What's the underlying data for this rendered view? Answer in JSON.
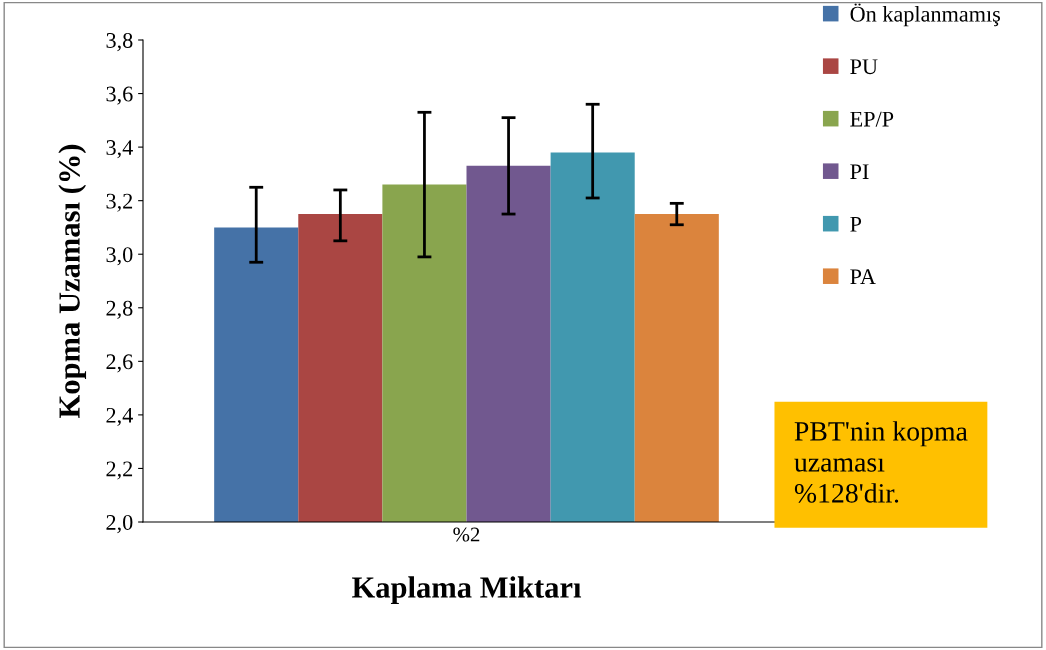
{
  "chart_data": {
    "type": "bar",
    "xlabel": "Kaplama Miktarı",
    "ylabel": "Kopma Uzaması (%)",
    "categories": [
      "%2"
    ],
    "series": [
      {
        "name": "Ön kaplanmamış",
        "color": "#4572a7",
        "values": [
          3.1
        ],
        "errors": [
          [
            2.97,
            3.25
          ]
        ]
      },
      {
        "name": "PU",
        "color": "#aa4643",
        "values": [
          3.15
        ],
        "errors": [
          [
            3.05,
            3.24
          ]
        ]
      },
      {
        "name": "EP/P",
        "color": "#89a54e",
        "values": [
          3.26
        ],
        "errors": [
          [
            2.99,
            3.53
          ]
        ]
      },
      {
        "name": "PI",
        "color": "#71588f",
        "values": [
          3.33
        ],
        "errors": [
          [
            3.15,
            3.51
          ]
        ]
      },
      {
        "name": "P",
        "color": "#4198af",
        "values": [
          3.38
        ],
        "errors": [
          [
            3.21,
            3.56
          ]
        ]
      },
      {
        "name": "PA",
        "color": "#db843d",
        "values": [
          3.15
        ],
        "errors": [
          [
            3.11,
            3.19
          ]
        ]
      }
    ],
    "ylim": [
      2.0,
      3.8
    ],
    "yticks": [
      {
        "value": 2.0,
        "label": "2,0"
      },
      {
        "value": 2.2,
        "label": "2,2"
      },
      {
        "value": 2.4,
        "label": "2,4"
      },
      {
        "value": 2.6,
        "label": "2,6"
      },
      {
        "value": 2.8,
        "label": "2,8"
      },
      {
        "value": 3.0,
        "label": "3,0"
      },
      {
        "value": 3.2,
        "label": "3,2"
      },
      {
        "value": 3.4,
        "label": "3,4"
      },
      {
        "value": 3.6,
        "label": "3,6"
      },
      {
        "value": 3.8,
        "label": "3,8"
      }
    ],
    "grid": false,
    "legend": "right",
    "annotations": [
      "PBT'nin kopma\nuzaması\n%128'dir."
    ]
  }
}
